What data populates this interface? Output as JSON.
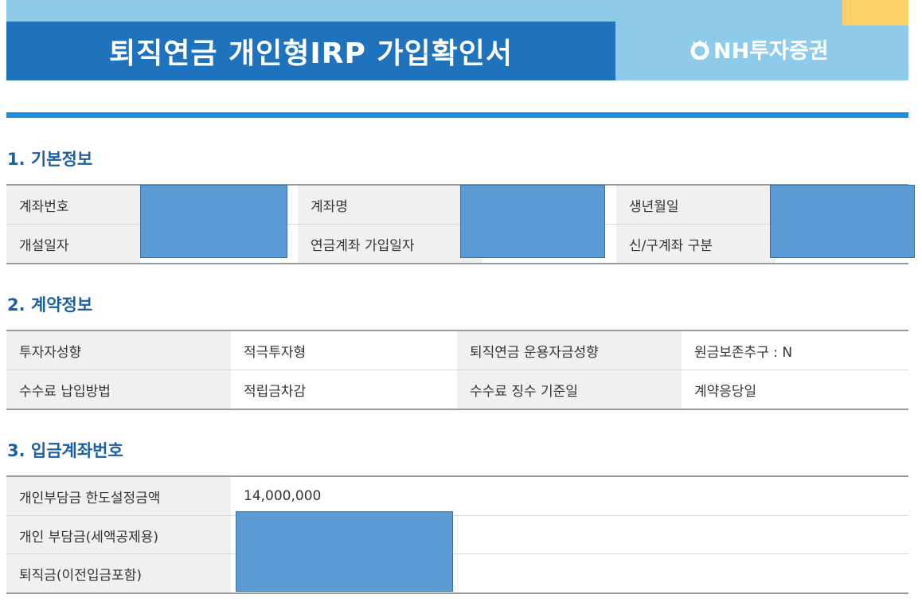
{
  "header": {
    "title": "퇴직연금 개인형IRP 가입확인서",
    "logo_text": "NH투자증권",
    "colors": {
      "banner": "#1f72bc",
      "light": "#8ecaea",
      "accent": "#fbd26a"
    }
  },
  "sections": {
    "basic": {
      "title": "1. 기본정보",
      "rows": [
        [
          "계좌번호",
          "",
          "계좌명",
          "",
          "생년월일",
          ""
        ],
        [
          "개설일자",
          "",
          "연금계좌 가입일자",
          "",
          "신/구계좌 구분",
          ""
        ]
      ]
    },
    "contract": {
      "title": "2. 계약정보",
      "rows": [
        [
          "투자자성향",
          "적극투자형",
          "퇴직연금 운용자금성향",
          "원금보존추구 : N"
        ],
        [
          "수수료 납입방법",
          "적립금차감",
          "수수료 징수 기준일",
          "계약응당일"
        ]
      ]
    },
    "deposit": {
      "title": "3. 입금계좌번호",
      "rows": [
        [
          "개인부담금 한도설정금액",
          "14,000,000"
        ],
        [
          "개인 부담금(세액공제용)",
          ""
        ],
        [
          "퇴직금(이전입금포함)",
          ""
        ]
      ]
    }
  },
  "redaction_color": "#5b9bd5"
}
